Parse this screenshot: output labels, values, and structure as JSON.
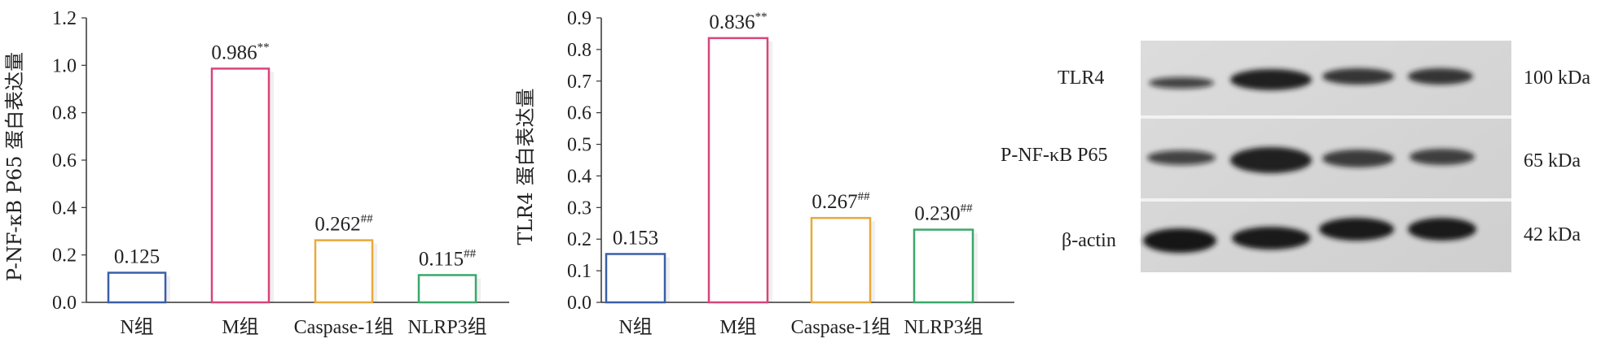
{
  "chart_data": [
    {
      "type": "bar",
      "ylabel": "P-NF-κB P65 蛋白表达量",
      "ylim": [
        0,
        1.2
      ],
      "yticks": [
        "0.0",
        "0.2",
        "0.4",
        "0.6",
        "0.8",
        "1.0",
        "1.2"
      ],
      "categories": [
        "N组",
        "M组",
        "Caspase-1组",
        "NLRP3组"
      ],
      "values": [
        0.125,
        0.986,
        0.262,
        0.115
      ],
      "value_labels": [
        "0.125",
        "0.986",
        "0.262",
        "0.115"
      ],
      "significance": [
        "",
        "**",
        "##",
        "##"
      ],
      "colors": [
        "#3a5fa8",
        "#d6457a",
        "#e8a93a",
        "#3aa86a"
      ],
      "grid": false
    },
    {
      "type": "bar",
      "ylabel": "TLR4 蛋白表达量",
      "ylim": [
        0,
        0.9
      ],
      "yticks": [
        "0.0",
        "0.1",
        "0.2",
        "0.3",
        "0.4",
        "0.5",
        "0.6",
        "0.7",
        "0.8",
        "0.9"
      ],
      "categories": [
        "N组",
        "M组",
        "Caspase-1组",
        "NLRP3组"
      ],
      "values": [
        0.153,
        0.836,
        0.267,
        0.23
      ],
      "value_labels": [
        "0.153",
        "0.836",
        "0.267",
        "0.230"
      ],
      "significance": [
        "",
        "**",
        "##",
        "##"
      ],
      "colors": [
        "#3a5fa8",
        "#d6457a",
        "#e8a93a",
        "#3aa86a"
      ],
      "grid": false
    }
  ],
  "western_blot": {
    "rows": [
      {
        "protein": "TLR4",
        "size": "100 kDa"
      },
      {
        "protein": "P-NF-κB P65",
        "size": "65 kDa"
      },
      {
        "protein": "β-actin",
        "size": "42 kDa"
      }
    ]
  }
}
